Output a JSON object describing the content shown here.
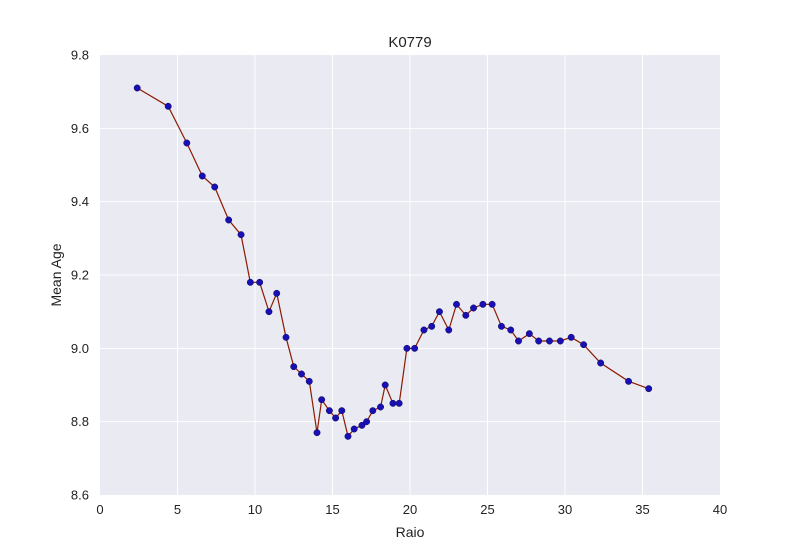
{
  "chart_data": {
    "type": "line",
    "title": "K0779",
    "xlabel": "Raio",
    "ylabel": "Mean Age",
    "xlim": [
      0,
      40
    ],
    "ylim": [
      8.6,
      9.8
    ],
    "xticks": [
      0,
      5,
      10,
      15,
      20,
      25,
      30,
      35,
      40
    ],
    "yticks": [
      8.6,
      8.8,
      9.0,
      9.2,
      9.4,
      9.6,
      9.8
    ],
    "xtick_labels": [
      "0",
      "5",
      "10",
      "15",
      "20",
      "25",
      "30",
      "35",
      "40"
    ],
    "ytick_labels": [
      "8.6",
      "8.8",
      "9.0",
      "9.2",
      "9.4",
      "9.6",
      "9.8"
    ],
    "grid": true,
    "background": "#eaeaf2",
    "grid_color": "#ffffff",
    "line_color": "#8b1a00",
    "marker_color": "#1a0fb4",
    "series": [
      {
        "x": [
          2.4,
          4.4,
          5.6,
          6.6,
          7.4,
          8.3,
          9.1,
          9.7,
          10.3,
          10.9,
          11.4,
          12.0,
          12.5,
          13.0,
          13.5,
          14.0,
          14.3,
          14.8,
          15.2,
          15.6,
          16.0,
          16.4,
          16.9,
          17.2,
          17.6,
          18.1,
          18.4,
          18.9,
          19.3,
          19.8,
          20.3,
          20.9,
          21.4,
          21.9,
          22.5,
          23.0,
          23.6,
          24.1,
          24.7,
          25.3,
          25.9,
          26.5,
          27.0,
          27.7,
          28.3,
          29.0,
          29.7,
          30.4,
          31.2,
          32.3,
          34.1,
          35.4
        ],
        "y": [
          9.71,
          9.66,
          9.56,
          9.47,
          9.44,
          9.35,
          9.31,
          9.18,
          9.18,
          9.1,
          9.15,
          9.03,
          8.95,
          8.93,
          8.91,
          8.77,
          8.86,
          8.83,
          8.81,
          8.83,
          8.76,
          8.78,
          8.79,
          8.8,
          8.83,
          8.84,
          8.9,
          8.85,
          8.85,
          9.0,
          9.0,
          9.05,
          9.06,
          9.1,
          9.05,
          9.12,
          9.09,
          9.11,
          9.12,
          9.12,
          9.06,
          9.05,
          9.02,
          9.04,
          9.02,
          9.02,
          9.02,
          9.03,
          9.01,
          8.96,
          8.91,
          8.89
        ]
      }
    ]
  }
}
